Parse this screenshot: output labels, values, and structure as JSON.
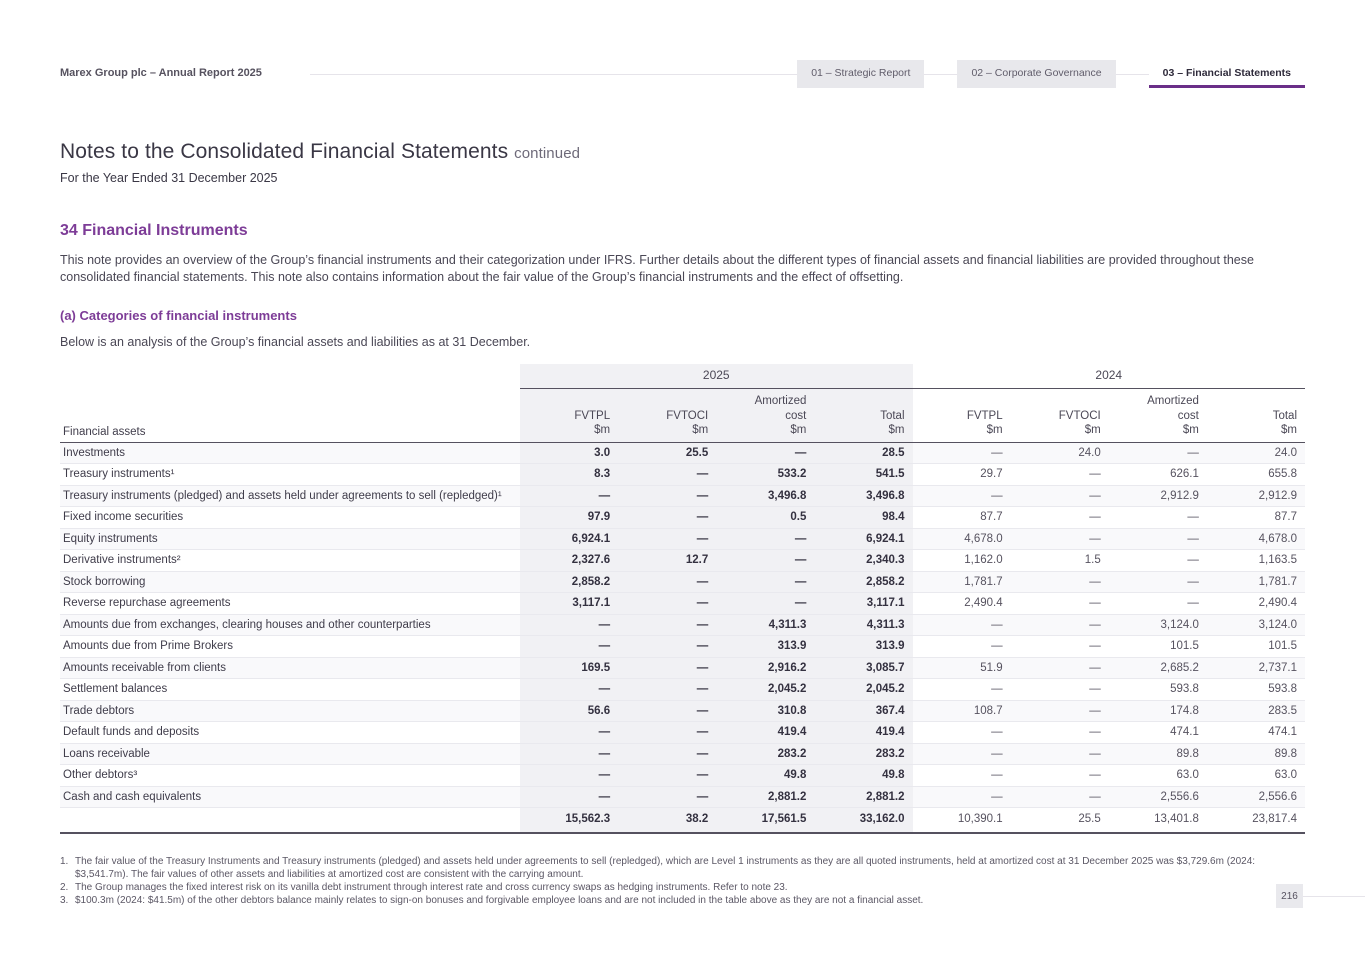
{
  "header": {
    "brand": "Marex Group plc – Annual Report 2025",
    "tabs": [
      {
        "label": "01 – Strategic Report",
        "active": false
      },
      {
        "label": "02 – Corporate Governance",
        "active": false
      },
      {
        "label": "03 – Financial Statements",
        "active": true
      }
    ]
  },
  "page": {
    "title": "Notes to the Consolidated Financial Statements",
    "title_suffix": "continued",
    "subtitle": "For the Year Ended 31 December 2025",
    "section_heading": "34 Financial Instruments",
    "intro": "This note provides an overview of the Group’s financial instruments and their categorization under IFRS. Further details about the different types of financial assets and financial liabilities are provided throughout these consolidated financial statements. This note also contains information about the fair value of the Group’s financial instruments and the effect of offsetting.",
    "subsection_heading": "(a) Categories of financial instruments",
    "table_intro": "Below is an analysis of the Group’s financial assets and liabilities as at 31 December.",
    "page_number": "216"
  },
  "table": {
    "row_header": "Financial assets",
    "groups": [
      {
        "year": "2025"
      },
      {
        "year": "2024"
      }
    ],
    "columns": [
      [
        "FVTPL"
      ],
      [
        "FVTOCI"
      ],
      [
        "Amortized",
        "cost"
      ],
      [
        "Total"
      ]
    ],
    "unit": "$m",
    "rows": [
      {
        "label": "Investments",
        "y2025": [
          "3.0",
          "25.5",
          "—",
          "28.5"
        ],
        "y2024": [
          "—",
          "24.0",
          "—",
          "24.0"
        ]
      },
      {
        "label": "Treasury instruments¹",
        "y2025": [
          "8.3",
          "—",
          "533.2",
          "541.5"
        ],
        "y2024": [
          "29.7",
          "—",
          "626.1",
          "655.8"
        ]
      },
      {
        "label": "Treasury instruments (pledged) and assets held under agreements to sell (repledged)¹",
        "y2025": [
          "—",
          "—",
          "3,496.8",
          "3,496.8"
        ],
        "y2024": [
          "—",
          "—",
          "2,912.9",
          "2,912.9"
        ]
      },
      {
        "label": "Fixed income securities",
        "y2025": [
          "97.9",
          "—",
          "0.5",
          "98.4"
        ],
        "y2024": [
          "87.7",
          "—",
          "—",
          "87.7"
        ]
      },
      {
        "label": "Equity instruments",
        "y2025": [
          "6,924.1",
          "—",
          "—",
          "6,924.1"
        ],
        "y2024": [
          "4,678.0",
          "—",
          "—",
          "4,678.0"
        ]
      },
      {
        "label": "Derivative instruments²",
        "y2025": [
          "2,327.6",
          "12.7",
          "—",
          "2,340.3"
        ],
        "y2024": [
          "1,162.0",
          "1.5",
          "—",
          "1,163.5"
        ]
      },
      {
        "label": "Stock borrowing",
        "y2025": [
          "2,858.2",
          "—",
          "—",
          "2,858.2"
        ],
        "y2024": [
          "1,781.7",
          "—",
          "—",
          "1,781.7"
        ]
      },
      {
        "label": "Reverse repurchase agreements",
        "y2025": [
          "3,117.1",
          "—",
          "—",
          "3,117.1"
        ],
        "y2024": [
          "2,490.4",
          "—",
          "—",
          "2,490.4"
        ]
      },
      {
        "label": "Amounts due from exchanges, clearing houses and other counterparties",
        "y2025": [
          "—",
          "—",
          "4,311.3",
          "4,311.3"
        ],
        "y2024": [
          "—",
          "—",
          "3,124.0",
          "3,124.0"
        ]
      },
      {
        "label": "Amounts due from Prime Brokers",
        "y2025": [
          "—",
          "—",
          "313.9",
          "313.9"
        ],
        "y2024": [
          "—",
          "—",
          "101.5",
          "101.5"
        ]
      },
      {
        "label": "Amounts receivable from clients",
        "y2025": [
          "169.5",
          "—",
          "2,916.2",
          "3,085.7"
        ],
        "y2024": [
          "51.9",
          "—",
          "2,685.2",
          "2,737.1"
        ]
      },
      {
        "label": "Settlement balances",
        "y2025": [
          "—",
          "—",
          "2,045.2",
          "2,045.2"
        ],
        "y2024": [
          "—",
          "—",
          "593.8",
          "593.8"
        ]
      },
      {
        "label": "Trade debtors",
        "y2025": [
          "56.6",
          "—",
          "310.8",
          "367.4"
        ],
        "y2024": [
          "108.7",
          "—",
          "174.8",
          "283.5"
        ]
      },
      {
        "label": "Default funds and deposits",
        "y2025": [
          "—",
          "—",
          "419.4",
          "419.4"
        ],
        "y2024": [
          "—",
          "—",
          "474.1",
          "474.1"
        ]
      },
      {
        "label": "Loans receivable",
        "y2025": [
          "—",
          "—",
          "283.2",
          "283.2"
        ],
        "y2024": [
          "—",
          "—",
          "89.8",
          "89.8"
        ]
      },
      {
        "label": "Other debtors³",
        "y2025": [
          "—",
          "—",
          "49.8",
          "49.8"
        ],
        "y2024": [
          "—",
          "—",
          "63.0",
          "63.0"
        ]
      },
      {
        "label": "Cash and cash equivalents",
        "y2025": [
          "—",
          "—",
          "2,881.2",
          "2,881.2"
        ],
        "y2024": [
          "—",
          "—",
          "2,556.6",
          "2,556.6"
        ]
      }
    ],
    "total": {
      "y2025": [
        "15,562.3",
        "38.2",
        "17,561.5",
        "33,162.0"
      ],
      "y2024": [
        "10,390.1",
        "25.5",
        "13,401.8",
        "23,817.4"
      ]
    }
  },
  "footnotes": [
    "The fair value of the Treasury Instruments and Treasury instruments (pledged) and assets held under agreements to sell (repledged), which are Level 1 instruments as they are all quoted instruments, held at amortized cost at 31 December 2025 was $3,729.6m (2024: $3,541.7m). The fair values of other assets and liabilities at amortized cost are consistent with the carrying amount.",
    "The Group manages the fixed interest risk on its vanilla debt instrument through interest rate and cross currency swaps as hedging instruments. Refer to note 23.",
    "$100.3m (2024: $41.5m) of the other debtors balance mainly relates to sign-on bonuses and forgivable employee loans and are not included in the table above as they are not a financial asset."
  ],
  "colors": {
    "accent_purple": "#7d3c97",
    "tab_underline": "#6a2f88",
    "shaded_column_bg": "#f1f1f4",
    "dark_border": "#55515f",
    "inactive_tab_bg": "#e8e8ec"
  }
}
